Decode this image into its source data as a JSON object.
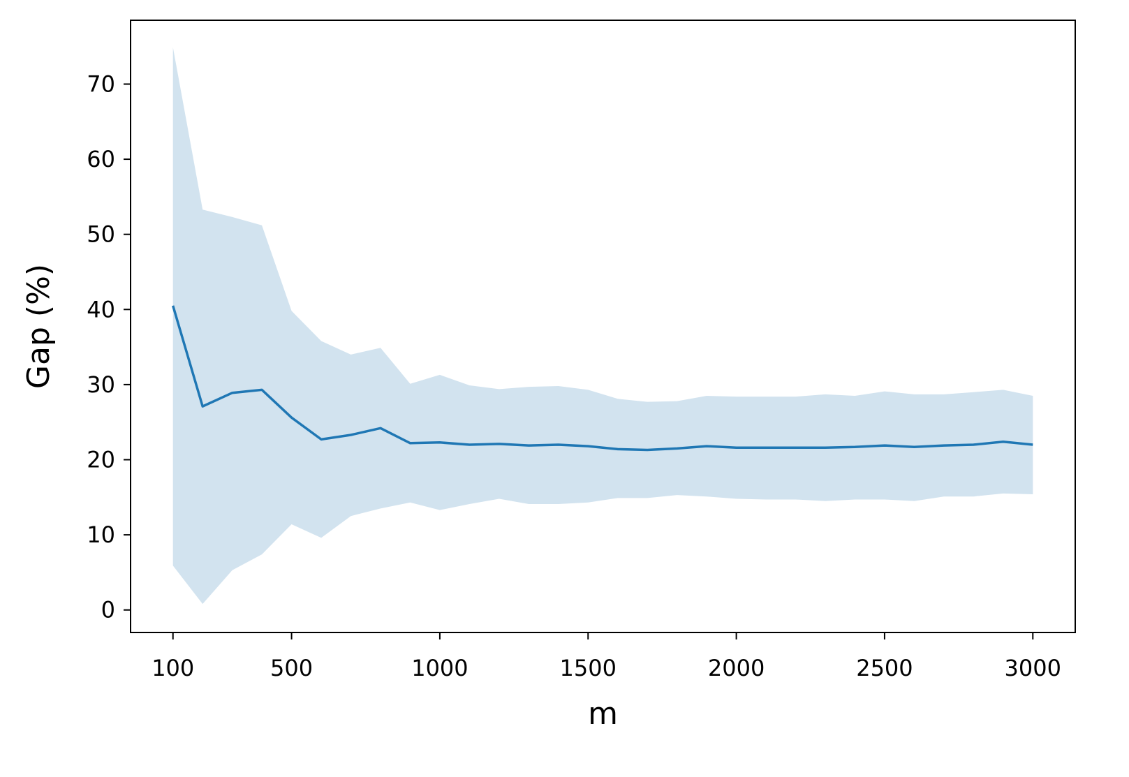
{
  "chart_data": {
    "type": "line",
    "title": "",
    "xlabel": "m",
    "ylabel": "Gap (%)",
    "xlim": [
      -43,
      3143
    ],
    "ylim": [
      -3,
      78.5
    ],
    "xticks": [
      100,
      500,
      1000,
      1500,
      2000,
      2500,
      3000
    ],
    "xtick_labels": [
      "100",
      "500",
      "1000",
      "1500",
      "2000",
      "2500",
      "3000"
    ],
    "yticks": [
      0,
      10,
      20,
      30,
      40,
      50,
      60,
      70
    ],
    "ytick_labels": [
      "0",
      "10",
      "20",
      "30",
      "40",
      "50",
      "60",
      "70"
    ],
    "grid": false,
    "legend": "none",
    "series": [
      {
        "x": [
          100,
          200,
          300,
          400,
          500,
          600,
          700,
          800,
          900,
          1000,
          1100,
          1200,
          1300,
          1400,
          1500,
          1600,
          1700,
          1800,
          1900,
          2000,
          2100,
          2200,
          2300,
          2400,
          2500,
          2600,
          2700,
          2800,
          2900,
          3000
        ],
        "mean": [
          40.5,
          27.1,
          28.9,
          29.3,
          25.6,
          22.7,
          23.3,
          24.2,
          22.2,
          22.3,
          22.0,
          22.1,
          21.9,
          22.0,
          21.8,
          21.4,
          21.3,
          21.5,
          21.8,
          21.6,
          21.6,
          21.6,
          21.6,
          21.7,
          21.9,
          21.7,
          21.9,
          22.0,
          22.4,
          22.0
        ],
        "upper": [
          74.9,
          53.3,
          52.3,
          51.2,
          39.8,
          35.8,
          34.0,
          34.9,
          30.1,
          31.3,
          29.9,
          29.4,
          29.7,
          29.8,
          29.3,
          28.1,
          27.7,
          27.8,
          28.5,
          28.4,
          28.4,
          28.4,
          28.7,
          28.5,
          29.1,
          28.7,
          28.7,
          29.0,
          29.3,
          28.5
        ],
        "lower": [
          5.9,
          0.8,
          5.3,
          7.4,
          11.4,
          9.6,
          12.5,
          13.5,
          14.3,
          13.3,
          14.1,
          14.8,
          14.1,
          14.1,
          14.3,
          14.9,
          14.9,
          15.3,
          15.1,
          14.8,
          14.7,
          14.7,
          14.5,
          14.7,
          14.7,
          14.5,
          15.1,
          15.1,
          15.5,
          15.4
        ]
      }
    ],
    "colors": {
      "line": "#1f77b4",
      "band": "#d2e3ef",
      "axes": "#000000"
    }
  }
}
